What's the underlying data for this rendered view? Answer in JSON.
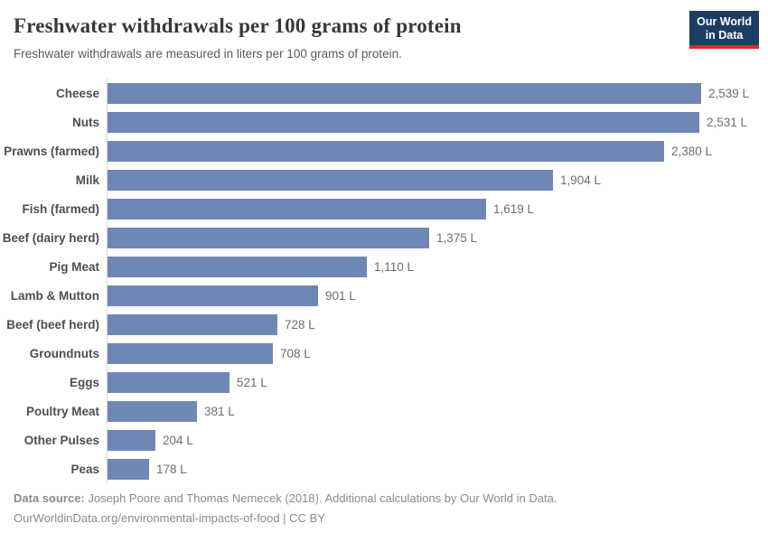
{
  "header": {
    "title": "Freshwater withdrawals per 100 grams of protein",
    "subtitle": "Freshwater withdrawals are measured in liters per 100 grams of protein.",
    "logo": {
      "line1": "Our World",
      "line2": "in Data"
    }
  },
  "chart_data": {
    "type": "bar",
    "orientation": "horizontal",
    "title": "Freshwater withdrawals per 100 grams of protein",
    "unit": "liters per 100 grams of protein",
    "categories": [
      "Cheese",
      "Nuts",
      "Prawns (farmed)",
      "Milk",
      "Fish (farmed)",
      "Beef (dairy herd)",
      "Pig Meat",
      "Lamb & Mutton",
      "Beef (beef herd)",
      "Groundnuts",
      "Eggs",
      "Poultry Meat",
      "Other Pulses",
      "Peas"
    ],
    "values": [
      2539,
      2531,
      2380,
      1904,
      1619,
      1375,
      1110,
      901,
      728,
      708,
      521,
      381,
      204,
      178
    ],
    "value_labels": [
      "2,539 L",
      "2,531 L",
      "2,380 L",
      "1,904 L",
      "1,619 L",
      "1,375 L",
      "1,110 L",
      "901 L",
      "728 L",
      "708 L",
      "521 L",
      "381 L",
      "204 L",
      "178 L"
    ],
    "xlim": [
      0,
      2539
    ],
    "grid": false,
    "legend": "none",
    "bar_color": "#6e87b5"
  },
  "colors": {
    "bar": "#6e87b5",
    "axis_line": "#d9d9d9",
    "logo_background": "#1d3d63",
    "logo_stripe": "#e02728"
  },
  "footer": {
    "source_label": "Data source:",
    "source_text": "Joseph Poore and Thomas Nemecek (2018). Additional calculations by Our World in Data.",
    "link_line": "OurWorldinData.org/environmental-impacts-of-food | CC BY"
  }
}
